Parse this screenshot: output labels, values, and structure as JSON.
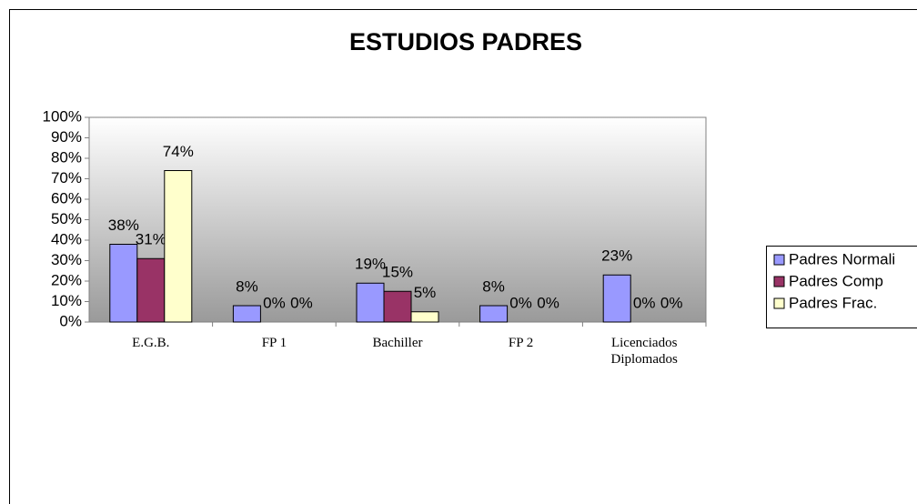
{
  "chart_data": {
    "type": "bar",
    "title": "ESTUDIOS PADRES",
    "categories": [
      "E.G.B.",
      "FP 1",
      "Bachiller",
      "FP 2",
      "Licenciados\nDiplomados"
    ],
    "series": [
      {
        "name": "Padres Normali",
        "color": "#9999ff",
        "values": [
          38,
          8,
          19,
          8,
          23
        ],
        "value_labels": [
          "38%",
          "8%",
          "19%",
          "8%",
          "23%"
        ]
      },
      {
        "name": "Padres Comp",
        "color": "#993366",
        "values": [
          31,
          0,
          15,
          0,
          0
        ],
        "value_labels": [
          "31%",
          "0%",
          "15%",
          "0%",
          "0%"
        ]
      },
      {
        "name": "Padres Frac.",
        "color": "#ffffcc",
        "values": [
          74,
          0,
          5,
          0,
          0
        ],
        "value_labels": [
          "74%",
          "0%",
          "5%",
          "0%",
          "0%"
        ]
      }
    ],
    "ylim": [
      0,
      100
    ],
    "yticks": [
      {
        "value": 0,
        "label": "0%"
      },
      {
        "value": 10,
        "label": "10%"
      },
      {
        "value": 20,
        "label": "20%"
      },
      {
        "value": 30,
        "label": "30%"
      },
      {
        "value": 40,
        "label": "40%"
      },
      {
        "value": 50,
        "label": "50%"
      },
      {
        "value": 60,
        "label": "60%"
      },
      {
        "value": 70,
        "label": "70%"
      },
      {
        "value": 80,
        "label": "80%"
      },
      {
        "value": 90,
        "label": "90%"
      },
      {
        "value": 100,
        "label": "100%"
      }
    ],
    "legend": "right"
  }
}
